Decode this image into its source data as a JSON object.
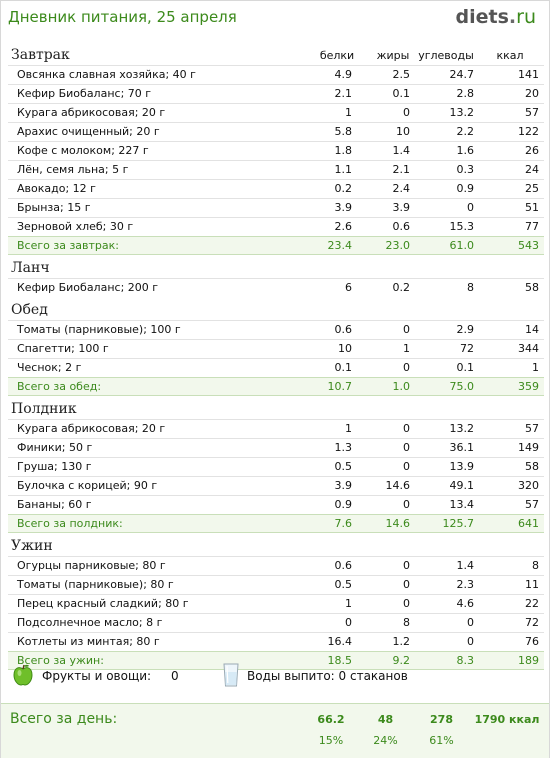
{
  "header": {
    "title": "Дневник питания, 25 апреля",
    "logo_main": "diets",
    "logo_dot": ".",
    "logo_tld": "ru"
  },
  "columns": {
    "protein": "белки",
    "fat": "жиры",
    "carbs": "углеводы",
    "kcal": "ккал"
  },
  "meals": [
    {
      "name": "Завтрак",
      "items": [
        {
          "name": "Овсянка славная хозяйка; 40 г",
          "p": "4.9",
          "f": "2.5",
          "c": "24.7",
          "k": "141"
        },
        {
          "name": "Кефир Биобаланс; 70 г",
          "p": "2.1",
          "f": "0.1",
          "c": "2.8",
          "k": "20"
        },
        {
          "name": "Курага абрикосовая; 20 г",
          "p": "1",
          "f": "0",
          "c": "13.2",
          "k": "57"
        },
        {
          "name": "Арахис очищенный; 20 г",
          "p": "5.8",
          "f": "10",
          "c": "2.2",
          "k": "122"
        },
        {
          "name": "Кофе с молоком; 227 г",
          "p": "1.8",
          "f": "1.4",
          "c": "1.6",
          "k": "26"
        },
        {
          "name": "Лён, семя льна; 5 г",
          "p": "1.1",
          "f": "2.1",
          "c": "0.3",
          "k": "24"
        },
        {
          "name": "Авокадо; 12 г",
          "p": "0.2",
          "f": "2.4",
          "c": "0.9",
          "k": "25"
        },
        {
          "name": "Брынза; 15 г",
          "p": "3.9",
          "f": "3.9",
          "c": "0",
          "k": "51"
        },
        {
          "name": "Зерновой хлеб; 30 г",
          "p": "2.6",
          "f": "0.6",
          "c": "15.3",
          "k": "77"
        }
      ],
      "total": {
        "label": "Всего за завтрак:",
        "p": "23.4",
        "f": "23.0",
        "c": "61.0",
        "k": "543"
      }
    },
    {
      "name": "Ланч",
      "items": [
        {
          "name": "Кефир Биобаланс; 200 г",
          "p": "6",
          "f": "0.2",
          "c": "8",
          "k": "58"
        }
      ]
    },
    {
      "name": "Обед",
      "items": [
        {
          "name": "Томаты (парниковые); 100 г",
          "p": "0.6",
          "f": "0",
          "c": "2.9",
          "k": "14"
        },
        {
          "name": "Спагетти; 100 г",
          "p": "10",
          "f": "1",
          "c": "72",
          "k": "344"
        },
        {
          "name": "Чеснок; 2 г",
          "p": "0.1",
          "f": "0",
          "c": "0.1",
          "k": "1"
        }
      ],
      "total": {
        "label": "Всего за обед:",
        "p": "10.7",
        "f": "1.0",
        "c": "75.0",
        "k": "359"
      }
    },
    {
      "name": "Полдник",
      "items": [
        {
          "name": "Курага абрикосовая; 20 г",
          "p": "1",
          "f": "0",
          "c": "13.2",
          "k": "57"
        },
        {
          "name": "Финики; 50 г",
          "p": "1.3",
          "f": "0",
          "c": "36.1",
          "k": "149"
        },
        {
          "name": "Груша; 130 г",
          "p": "0.5",
          "f": "0",
          "c": "13.9",
          "k": "58"
        },
        {
          "name": "Булочка с корицей; 90 г",
          "p": "3.9",
          "f": "14.6",
          "c": "49.1",
          "k": "320"
        },
        {
          "name": "Бананы; 60 г",
          "p": "0.9",
          "f": "0",
          "c": "13.4",
          "k": "57"
        }
      ],
      "total": {
        "label": "Всего за полдник:",
        "p": "7.6",
        "f": "14.6",
        "c": "125.7",
        "k": "641"
      }
    },
    {
      "name": "Ужин",
      "items": [
        {
          "name": "Огурцы парниковые; 80 г",
          "p": "0.6",
          "f": "0",
          "c": "1.4",
          "k": "8"
        },
        {
          "name": "Томаты (парниковые); 80 г",
          "p": "0.5",
          "f": "0",
          "c": "2.3",
          "k": "11"
        },
        {
          "name": "Перец красный сладкий; 80 г",
          "p": "1",
          "f": "0",
          "c": "4.6",
          "k": "22"
        },
        {
          "name": "Подсолнечное масло; 8 г",
          "p": "0",
          "f": "8",
          "c": "0",
          "k": "72"
        },
        {
          "name": "Котлеты из минтая; 80 г",
          "p": "16.4",
          "f": "1.2",
          "c": "0",
          "k": "76"
        }
      ],
      "total": {
        "label": "Всего за ужин:",
        "p": "18.5",
        "f": "9.2",
        "c": "8.3",
        "k": "189"
      }
    }
  ],
  "extras": {
    "fruit_label": "Фрукты и овощи:",
    "fruit_value": "0",
    "water_label": "Воды выпито: 0 стаканов",
    "apple_icon": "apple-icon",
    "glass_icon": "water-glass-icon"
  },
  "day_total": {
    "label": "Всего за день:",
    "protein": "66.2",
    "fat": "48",
    "carbs": "278",
    "kcal": "1790 ккал",
    "protein_pct": "15%",
    "fat_pct": "24%",
    "carbs_pct": "61%"
  },
  "colors": {
    "accent": "#3c8a1c",
    "total_bg": "#f2f8ec"
  }
}
